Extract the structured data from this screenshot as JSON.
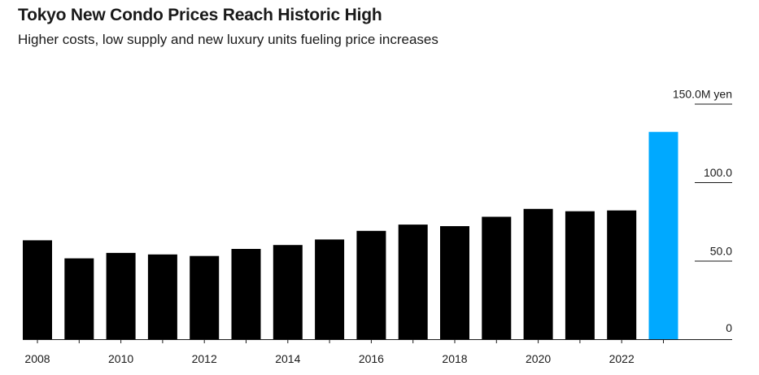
{
  "chart_data": {
    "type": "bar",
    "title": "Tokyo New Condo Prices Reach Historic High",
    "subtitle": "Higher costs, low supply and new luxury units fueling price increases",
    "ylabel": "",
    "xlabel": "",
    "unit": "M yen",
    "ylim": [
      0,
      150
    ],
    "yticks": [
      {
        "value": 0,
        "label": "0"
      },
      {
        "value": 50,
        "label": "50.0"
      },
      {
        "value": 100,
        "label": "100.0"
      },
      {
        "value": 150,
        "label": "150.0M yen"
      }
    ],
    "categories": [
      "2008",
      "2009",
      "2010",
      "2011",
      "2012",
      "2013",
      "2014",
      "2015",
      "2016",
      "2017",
      "2018",
      "2019",
      "2020",
      "2021",
      "2022",
      "2023"
    ],
    "values": [
      63.0,
      51.5,
      55.0,
      54.0,
      53.0,
      57.5,
      60.0,
      63.5,
      69.0,
      73.0,
      72.0,
      78.0,
      83.0,
      81.5,
      82.0,
      132.0
    ],
    "highlight_color": "#00a9ff",
    "bar_color": "#000000",
    "highlight_index": 15,
    "xtick_labels": [
      "2008",
      "2010",
      "2012",
      "2014",
      "2016",
      "2018",
      "2020",
      "2022"
    ],
    "grid": true
  }
}
